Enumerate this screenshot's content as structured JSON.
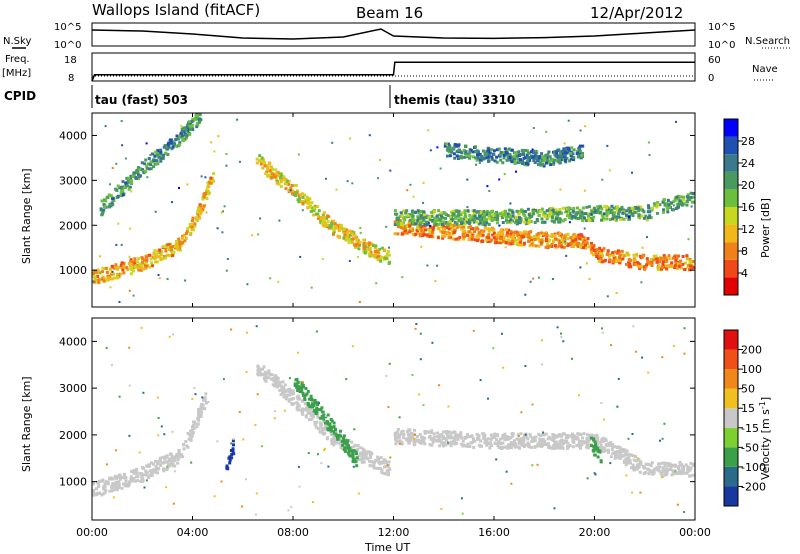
{
  "header": {
    "title": "Wallops Island (fitACF)",
    "beam": "Beam 16",
    "date": "12/Apr/2012"
  },
  "strip_labels": {
    "nsky": "N.Sky",
    "nsearch": "N.Search",
    "freq": "Freq.",
    "freq_unit": "[MHz]",
    "nave": "Nave",
    "cpid": "CPID",
    "noise_ticks": [
      "10^5",
      "10^0"
    ],
    "freq_ticks": [
      "18",
      "8"
    ],
    "nave_ticks": [
      "60",
      "0"
    ]
  },
  "cpid_segments": [
    {
      "label": "tau (fast) 503",
      "start_hour": 0
    },
    {
      "label": "themis (tau) 3310",
      "start_hour": 12
    }
  ],
  "axes": {
    "ylabel": "Slant Range [km]",
    "xlabel": "Time UT",
    "y_ticks": [
      "1000",
      "2000",
      "3000",
      "4000"
    ],
    "x_ticks": [
      "00:00",
      "04:00",
      "08:00",
      "12:00",
      "16:00",
      "20:00",
      "00:00"
    ]
  },
  "power_scale": {
    "label": "Power [dB]",
    "ticks": [
      "4",
      "8",
      "12",
      "16",
      "20",
      "24",
      "28"
    ],
    "colors": [
      "#0000ff",
      "#2050b0",
      "#3a7a8a",
      "#4a9a60",
      "#6cbf3c",
      "#c8d820",
      "#f0b818",
      "#f08018",
      "#f04818",
      "#e00000"
    ]
  },
  "velocity_scale": {
    "label": "Velocity [m s",
    "label_sup": "-1",
    "label_end": "]",
    "ticks": [
      "200",
      "100",
      "50",
      "15",
      "-15",
      "-50",
      "-100",
      "-200"
    ],
    "colors": [
      "#1838a0",
      "#2a6a8a",
      "#3aa04a",
      "#7cd030",
      "#c8c8c8",
      "#f0c020",
      "#f08818",
      "#f05018",
      "#e01010"
    ]
  },
  "chart_data": [
    {
      "type": "line",
      "title": "N.Sky",
      "x_range": [
        0,
        24
      ],
      "ylim": [
        "10^0",
        "10^5"
      ],
      "x": [
        0,
        2,
        4,
        6,
        8,
        10,
        11.5,
        12,
        14,
        16,
        18,
        20,
        22,
        24
      ],
      "values": [
        0.8,
        0.75,
        0.6,
        0.4,
        0.35,
        0.45,
        0.85,
        0.5,
        0.4,
        0.38,
        0.42,
        0.5,
        0.65,
        0.8
      ]
    },
    {
      "type": "line",
      "title": "Freq.",
      "x_range": [
        0,
        24
      ],
      "ylim": [
        8,
        18
      ],
      "x": [
        0,
        0.1,
        12,
        12.05,
        24
      ],
      "values": [
        8,
        10.5,
        10.5,
        15.5,
        15.5
      ]
    },
    {
      "type": "heatmap",
      "title": "Power [dB]",
      "x_range": [
        0,
        24
      ],
      "ylim": [
        180,
        4500
      ],
      "features": [
        {
          "x": [
            0,
            2,
            3.5,
            4.2,
            4.8
          ],
          "y": [
            850,
            1200,
            1600,
            2300,
            3200
          ],
          "value": 22
        },
        {
          "x": [
            0.3,
            2,
            3.5,
            4.3
          ],
          "y": [
            2400,
            3300,
            4000,
            4500
          ],
          "value": 12
        },
        {
          "x": [
            6.5,
            8,
            9.5,
            11,
            11.8
          ],
          "y": [
            3500,
            2800,
            2000,
            1500,
            1300
          ],
          "value": 20
        },
        {
          "x": [
            12,
            14,
            16,
            18,
            19.5,
            20,
            22,
            24
          ],
          "y": [
            2000,
            1900,
            1800,
            1700,
            1700,
            1400,
            1200,
            1200
          ],
          "value": 24
        },
        {
          "x": [
            12,
            16,
            20,
            22,
            24
          ],
          "y": [
            2200,
            2200,
            2300,
            2300,
            2700
          ],
          "value": 14
        },
        {
          "x": [
            14,
            16,
            18,
            19.5
          ],
          "y": [
            3700,
            3600,
            3500,
            3700
          ],
          "value": 10
        }
      ]
    },
    {
      "type": "heatmap",
      "title": "Velocity [m s-1]",
      "x_range": [
        0,
        24
      ],
      "ylim": [
        180,
        4500
      ],
      "features": [
        {
          "x": [
            0,
            2,
            3.5,
            4.5
          ],
          "y": [
            850,
            1200,
            1600,
            2800
          ],
          "value": 0
        },
        {
          "x": [
            5.3,
            5.6
          ],
          "y": [
            1300,
            1800
          ],
          "value": 150
        },
        {
          "x": [
            6.5,
            8,
            9.5,
            11,
            11.8
          ],
          "y": [
            3500,
            2800,
            2000,
            1500,
            1300
          ],
          "value": 0
        },
        {
          "x": [
            8,
            9.5,
            10.5
          ],
          "y": [
            3200,
            2200,
            1500
          ],
          "value": 40
        },
        {
          "x": [
            12,
            16,
            20,
            22,
            24
          ],
          "y": [
            2000,
            1900,
            1900,
            1300,
            1300
          ],
          "value": 0
        },
        {
          "x": [
            19.8,
            20.3
          ],
          "y": [
            1900,
            1400
          ],
          "value": 40
        }
      ]
    }
  ]
}
